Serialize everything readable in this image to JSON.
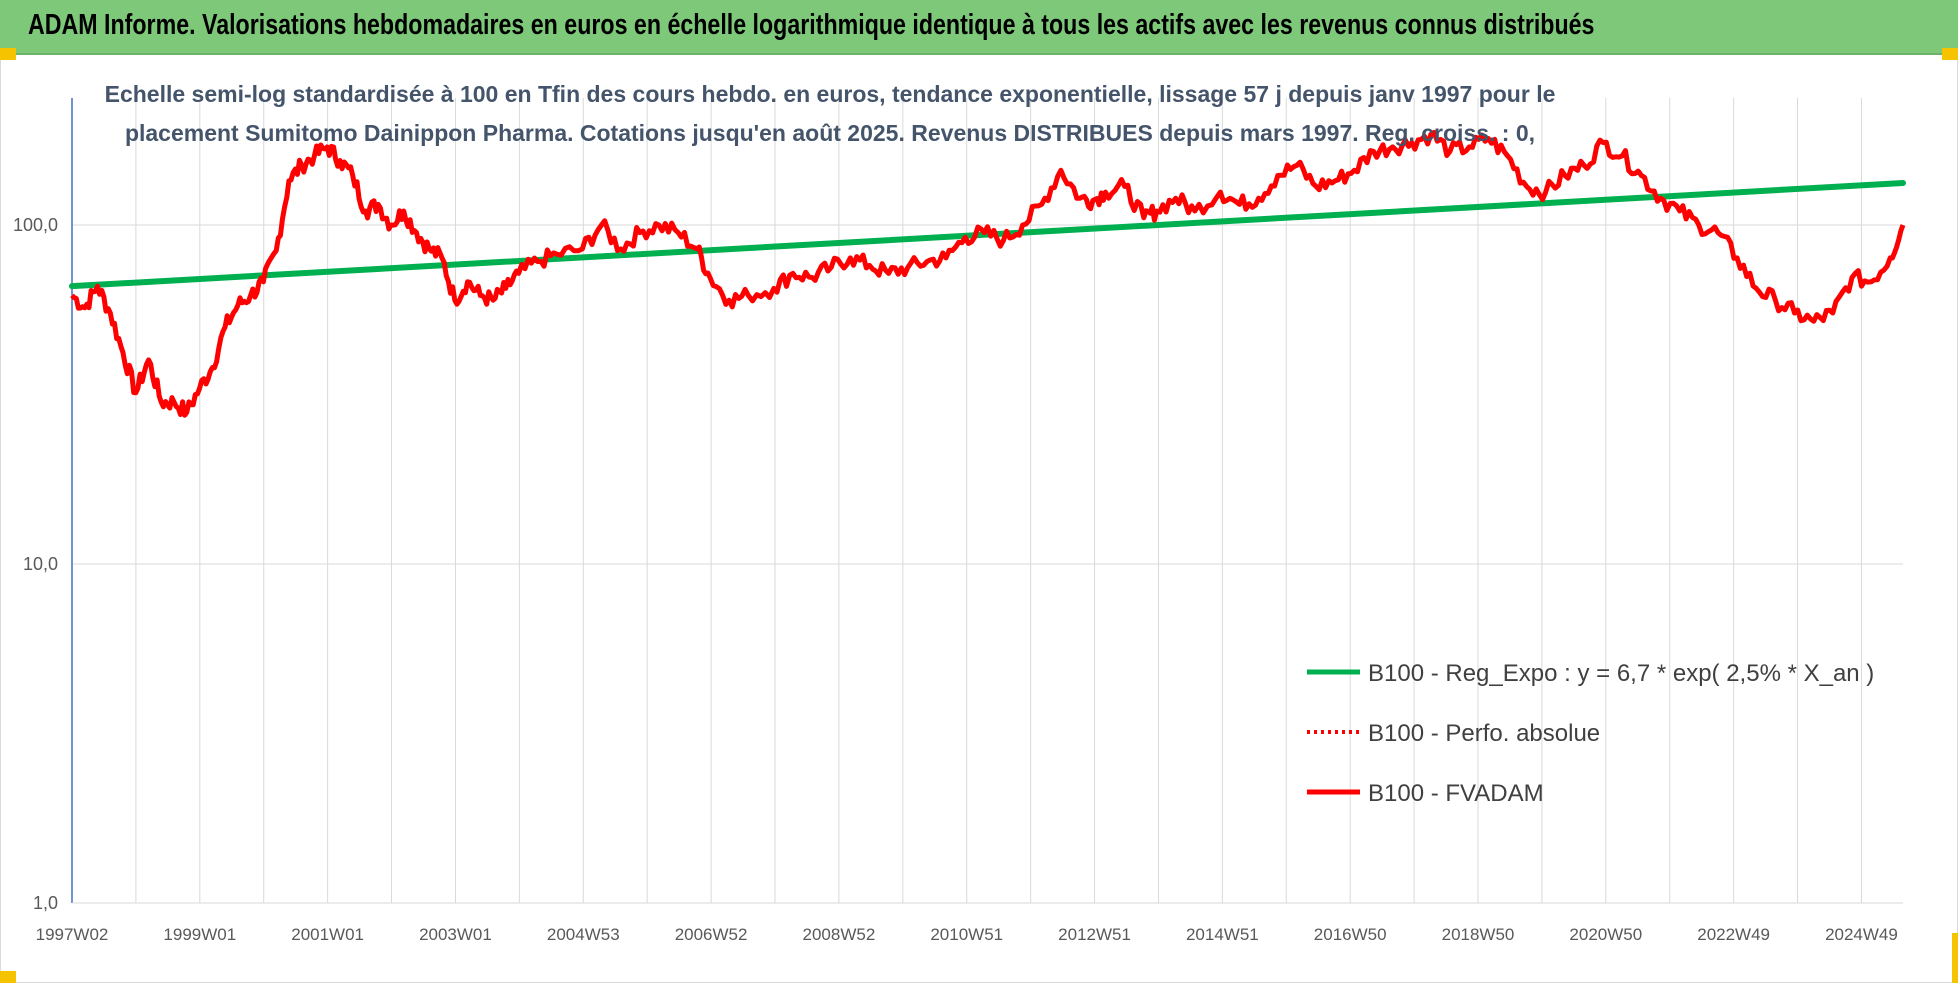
{
  "header": {
    "title": "ADAM Informe. Valorisations hebdomadaires en euros en échelle logarithmique identique à tous les actifs avec les revenus connus distribués"
  },
  "chart_data": {
    "type": "line",
    "title_lines": [
      "Echelle semi-log standardisée à 100 en Tfin des cours hebdo. en euros, tendance exponentielle, lissage 57 j depuis janv 1997 pour le",
      "placement Sumitomo Dainippon Pharma. Cotations jusqu'en août 2025.  Revenus DISTRIBUES depuis mars 1997. Reg. croiss. : 0,"
    ],
    "y_scale": "log",
    "ylim": [
      1,
      200
    ],
    "y_ticks": [
      1,
      10,
      100
    ],
    "y_tick_labels": [
      "1,0",
      "10,0",
      "100,0"
    ],
    "xlim": [
      1997.0,
      2025.7
    ],
    "x_tick_labels": [
      "1997W02",
      "1999W01",
      "2001W01",
      "2003W01",
      "2004W53",
      "2006W52",
      "2008W52",
      "2010W51",
      "2012W51",
      "2014W51",
      "2016W50",
      "2018W50",
      "2020W50",
      "2022W49",
      "2024W49"
    ],
    "grid": "vertical",
    "legend_position": "bottom-right",
    "colors": {
      "trend": "#00b050",
      "fvadam": "#ff0000",
      "perfo": "#ff0000",
      "axis": "#4472c4",
      "grid": "#d9d9d9"
    },
    "series": [
      {
        "name": "B100 - Reg_Expo : y = 6,7 * exp( 2,5% *  X_an )",
        "style": "solid-green",
        "x": [
          1997.0,
          2025.7
        ],
        "y": [
          66,
          133
        ]
      },
      {
        "name": "B100 - Perfo. absolue",
        "style": "dotted-red",
        "x": [],
        "y": []
      },
      {
        "name": "B100 - FVADAM",
        "style": "solid-red",
        "x": [
          1997.0,
          1997.2,
          1997.4,
          1997.6,
          1997.8,
          1998.0,
          1998.2,
          1998.4,
          1998.6,
          1998.8,
          1999.0,
          1999.2,
          1999.4,
          1999.6,
          1999.8,
          2000.0,
          2000.2,
          2000.4,
          2000.6,
          2000.8,
          2001.0,
          2001.2,
          2001.4,
          2001.6,
          2001.8,
          2002.0,
          2002.2,
          2002.4,
          2002.6,
          2002.8,
          2003.0,
          2003.2,
          2003.4,
          2003.6,
          2003.8,
          2004.0,
          2004.3,
          2004.6,
          2005.0,
          2005.3,
          2005.6,
          2005.9,
          2006.2,
          2006.5,
          2006.8,
          2007.0,
          2007.3,
          2007.6,
          2008.0,
          2008.3,
          2008.6,
          2008.9,
          2009.2,
          2009.5,
          2009.8,
          2010.1,
          2010.4,
          2010.7,
          2011.0,
          2011.3,
          2011.6,
          2011.9,
          2012.2,
          2012.5,
          2012.8,
          2013.0,
          2013.2,
          2013.5,
          2013.8,
          2014.0,
          2014.3,
          2014.6,
          2015.0,
          2015.3,
          2015.6,
          2015.9,
          2016.2,
          2016.5,
          2016.8,
          2017.1,
          2017.4,
          2017.7,
          2018.0,
          2018.3,
          2018.6,
          2018.9,
          2019.2,
          2019.5,
          2019.8,
          2020.1,
          2020.4,
          2020.7,
          2021.0,
          2021.3,
          2021.6,
          2021.9,
          2022.2,
          2022.5,
          2022.8,
          2023.1,
          2023.4,
          2023.7,
          2024.0,
          2024.3,
          2024.6,
          2024.9,
          2025.2,
          2025.5,
          2025.7
        ],
        "y": [
          62,
          57,
          66,
          55,
          42,
          32,
          40,
          30,
          30,
          28,
          33,
          38,
          50,
          58,
          62,
          68,
          84,
          135,
          150,
          160,
          170,
          155,
          140,
          110,
          115,
          100,
          110,
          95,
          85,
          80,
          60,
          68,
          62,
          60,
          65,
          72,
          78,
          82,
          85,
          100,
          85,
          95,
          100,
          95,
          85,
          70,
          60,
          62,
          65,
          72,
          70,
          75,
          80,
          76,
          72,
          75,
          78,
          80,
          92,
          95,
          90,
          100,
          115,
          145,
          120,
          118,
          125,
          130,
          105,
          110,
          120,
          110,
          125,
          115,
          120,
          140,
          150,
          130,
          135,
          145,
          165,
          170,
          175,
          185,
          165,
          170,
          180,
          160,
          130,
          125,
          140,
          150,
          175,
          160,
          140,
          120,
          110,
          100,
          95,
          80,
          65,
          60,
          55,
          52,
          55,
          70,
          68,
          80,
          100
        ]
      }
    ]
  }
}
